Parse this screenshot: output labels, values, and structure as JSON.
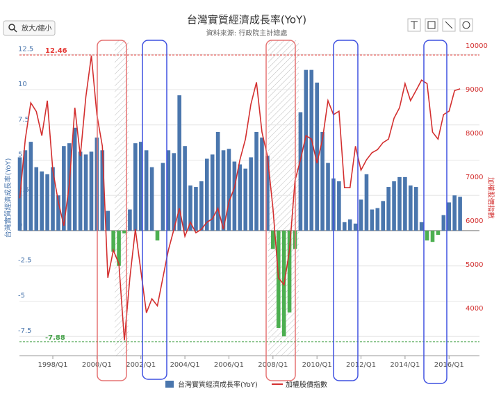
{
  "toolbar": {
    "zoom_button": "放大/縮小"
  },
  "chart_data": {
    "type": "bar_line",
    "title": "台灣實質經濟成長率(YoY)",
    "subtitle": "資料來源: 行政院主計總處",
    "y_label": "台灣實質經濟成長率(YoY)",
    "y2_label": "加權股價指數",
    "categories": [
      null,
      null,
      null,
      null,
      null,
      null,
      "1998/Q1",
      null,
      null,
      null,
      null,
      null,
      null,
      null,
      "2000/Q1",
      null,
      null,
      null,
      null,
      null,
      null,
      null,
      "2002/Q1",
      null,
      null,
      null,
      null,
      null,
      null,
      null,
      "2004/Q1",
      null,
      null,
      null,
      null,
      null,
      null,
      null,
      "2006/Q1",
      null,
      null,
      null,
      null,
      null,
      null,
      null,
      "2008/Q1",
      null,
      null,
      null,
      null,
      null,
      null,
      null,
      "2010/Q1",
      null,
      null,
      null,
      null,
      null,
      null,
      null,
      "2012/Q1",
      null,
      null,
      null,
      null,
      null,
      null,
      null,
      "2014/Q1",
      null,
      null,
      null,
      null,
      null,
      null,
      null,
      "2016/Q1",
      null,
      null
    ],
    "series": [
      {
        "name": "台灣實質經濟成長率(YoY)",
        "type": "bar",
        "color": "#4a76ad",
        "negative_color": "#4caf50",
        "values": [
          5.2,
          5.7,
          6.3,
          4.5,
          4.2,
          4.0,
          4.5,
          2.5,
          6.0,
          6.2,
          7.3,
          5.6,
          5.4,
          5.6,
          6.6,
          5.7,
          1.4,
          -1.5,
          -2.5,
          -0.2,
          1.5,
          6.2,
          6.3,
          5.7,
          4.5,
          -0.7,
          4.8,
          5.7,
          5.5,
          9.6,
          6.0,
          3.2,
          3.1,
          3.5,
          5.1,
          5.4,
          7.0,
          5.7,
          5.8,
          4.9,
          4.7,
          4.4,
          5.2,
          7.0,
          6.6,
          5.3,
          -1.3,
          -6.9,
          -7.5,
          -5.8,
          -1.3,
          8.4,
          11.4,
          11.4,
          10.5,
          7.0,
          4.8,
          3.7,
          3.5,
          0.6,
          0.8,
          0.5,
          2.2,
          4.0,
          1.5,
          1.6,
          2.1,
          3.1,
          3.5,
          3.8,
          3.8,
          3.2,
          3.1,
          0.6,
          -0.7,
          -0.8,
          -0.3,
          1.1,
          2.0,
          2.5,
          2.4
        ]
      },
      {
        "name": "加權股價指數",
        "type": "line",
        "axis": "y2",
        "color": "#d32f2f",
        "values": [
          6520,
          7870,
          8700,
          8500,
          7950,
          8750,
          7160,
          6440,
          5890,
          6840,
          8590,
          7480,
          8830,
          9780,
          8430,
          7710,
          4700,
          5330,
          5020,
          3270,
          4700,
          5810,
          4860,
          3900,
          4220,
          4060,
          4700,
          5330,
          5810,
          6290,
          5650,
          5970,
          5730,
          5810,
          5970,
          6050,
          6290,
          5810,
          6440,
          6760,
          7400,
          7870,
          8670,
          9170,
          8030,
          7480,
          6290,
          4700,
          4540,
          5330,
          6920,
          7400,
          7950,
          7870,
          7320,
          7870,
          8750,
          8430,
          8510,
          6760,
          6760,
          7710,
          7160,
          7400,
          7560,
          7630,
          7790,
          7870,
          8350,
          8590,
          9140,
          8750,
          8980,
          9220,
          9140,
          8030,
          7870,
          8430,
          8510,
          8980,
          9020
        ]
      }
    ],
    "ylim": [
      -8.87,
      13.5
    ],
    "yticks": [
      -7.5,
      -5,
      -2.5,
      0,
      2.5,
      5,
      7.5,
      10,
      12.5
    ],
    "y2lim": [
      2920,
      10130
    ],
    "y2ticks": [
      4000,
      5000,
      6000,
      7000,
      8000,
      9000,
      10000
    ],
    "grid": true,
    "reference_lines": [
      {
        "value": 12.46,
        "color": "#e53935"
      },
      {
        "value": -7.88,
        "color": "#43a047"
      }
    ],
    "legend": "bottom"
  }
}
